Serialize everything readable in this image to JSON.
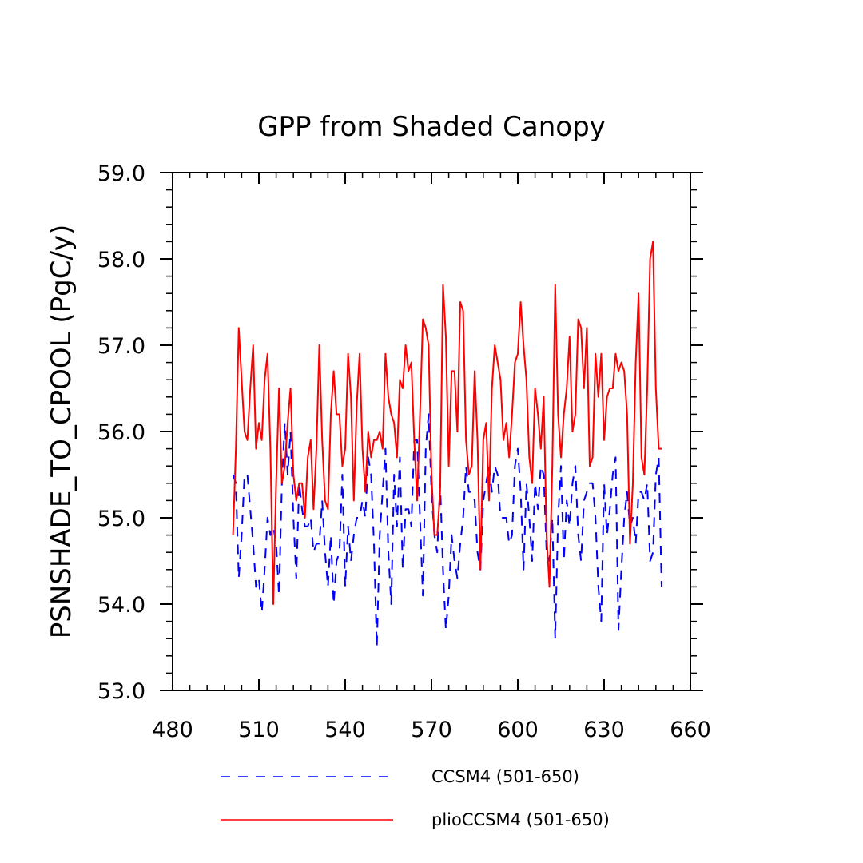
{
  "chart_data": {
    "type": "line",
    "title": "GPP from Shaded Canopy",
    "xlabel": "",
    "ylabel": "PSNSHADE_TO_CPOOL  (PgC/y)",
    "xlim": [
      480,
      660
    ],
    "ylim": [
      53.0,
      59.0
    ],
    "x_ticks": [
      480,
      510,
      540,
      570,
      600,
      630,
      660
    ],
    "x_tick_labels": [
      "480",
      "510",
      "540",
      "570",
      "600",
      "630",
      "660"
    ],
    "y_ticks": [
      53.0,
      54.0,
      55.0,
      56.0,
      57.0,
      58.0,
      59.0
    ],
    "y_tick_labels": [
      "53.0",
      "54.0",
      "55.0",
      "56.0",
      "57.0",
      "58.0",
      "59.0"
    ],
    "x_start": 501,
    "x_step": 1,
    "legend_position": "bottom",
    "series": [
      {
        "name": "CCSM4 (501-650)",
        "color": "#0000ff",
        "style": "dashed",
        "values": [
          55.5,
          55.4,
          54.3,
          54.8,
          55.5,
          55.5,
          55.1,
          54.7,
          54.2,
          54.3,
          53.9,
          54.4,
          55.0,
          54.8,
          54.9,
          54.7,
          54.1,
          55.4,
          56.1,
          55.5,
          56.0,
          55.0,
          54.3,
          55.4,
          55.1,
          54.9,
          54.9,
          55.0,
          54.6,
          54.7,
          54.7,
          55.2,
          54.6,
          54.2,
          54.8,
          54.0,
          54.5,
          54.6,
          55.5,
          54.2,
          54.9,
          54.5,
          54.8,
          55.0,
          55.0,
          55.2,
          55.0,
          55.7,
          55.5,
          54.7,
          53.5,
          54.8,
          55.3,
          55.8,
          54.6,
          54.0,
          55.5,
          54.9,
          55.7,
          54.4,
          55.1,
          55.1,
          54.9,
          55.9,
          55.9,
          55.0,
          54.1,
          55.8,
          56.2,
          55.3,
          54.8,
          54.6,
          55.4,
          54.4,
          53.7,
          54.1,
          54.8,
          54.5,
          54.3,
          54.7,
          55.0,
          55.6,
          55.3,
          55.3,
          55.2,
          54.6,
          54.4,
          55.2,
          55.4,
          55.6,
          55.3,
          55.6,
          55.5,
          55.0,
          55.0,
          55.0,
          54.7,
          54.8,
          55.6,
          55.8,
          55.3,
          54.4,
          55.4,
          55.0,
          54.5,
          55.4,
          55.1,
          55.6,
          55.5,
          54.6,
          54.5,
          55.0,
          53.6,
          55.0,
          55.6,
          54.5,
          55.2,
          54.9,
          55.4,
          55.6,
          54.8,
          54.5,
          55.2,
          55.3,
          55.4,
          55.4,
          55.0,
          54.2,
          53.8,
          55.4,
          54.8,
          55.1,
          55.5,
          55.7,
          53.7,
          54.4,
          55.0,
          55.3,
          54.9,
          55.0,
          54.7,
          55.3,
          55.3,
          55.2,
          55.4,
          54.5,
          54.6,
          55.5,
          55.7,
          54.2
        ]
      },
      {
        "name": "plioCCSM4 (501-650)",
        "color": "#ff0000",
        "style": "solid",
        "values": [
          54.8,
          55.8,
          57.2,
          56.6,
          56.0,
          55.9,
          56.5,
          57.0,
          55.8,
          56.1,
          55.9,
          56.6,
          56.9,
          55.8,
          54.0,
          55.4,
          56.5,
          55.4,
          55.6,
          56.1,
          56.5,
          55.5,
          55.2,
          55.4,
          55.4,
          55.0,
          55.7,
          55.9,
          55.1,
          55.8,
          57.0,
          55.9,
          55.2,
          55.1,
          56.2,
          56.7,
          56.2,
          56.2,
          55.6,
          55.8,
          56.9,
          56.4,
          55.2,
          56.3,
          56.9,
          55.8,
          55.3,
          56.0,
          55.7,
          55.9,
          55.9,
          56.0,
          55.8,
          56.9,
          56.4,
          56.2,
          56.1,
          55.7,
          56.6,
          56.5,
          57.0,
          56.7,
          56.8,
          55.9,
          55.2,
          56.2,
          57.3,
          57.2,
          57.0,
          55.5,
          54.8,
          54.8,
          55.3,
          57.7,
          57.1,
          55.6,
          56.7,
          56.7,
          56.0,
          57.5,
          57.4,
          55.9,
          55.5,
          55.6,
          56.7,
          55.9,
          54.4,
          55.9,
          56.1,
          55.2,
          56.5,
          57.0,
          56.8,
          56.6,
          55.9,
          56.1,
          55.7,
          56.2,
          56.8,
          56.9,
          57.5,
          57.0,
          56.6,
          55.7,
          55.4,
          56.5,
          56.2,
          55.8,
          56.4,
          54.8,
          54.2,
          55.6,
          57.7,
          56.2,
          55.7,
          56.2,
          56.5,
          57.1,
          56.0,
          56.2,
          57.3,
          57.2,
          56.5,
          57.2,
          55.6,
          55.7,
          56.9,
          56.4,
          56.9,
          55.9,
          56.4,
          56.5,
          56.5,
          56.9,
          56.7,
          56.8,
          56.7,
          56.2,
          54.7,
          55.4,
          56.8,
          57.6,
          55.7,
          55.5,
          56.5,
          58.0,
          58.2,
          56.5,
          55.8,
          55.8
        ]
      }
    ]
  }
}
